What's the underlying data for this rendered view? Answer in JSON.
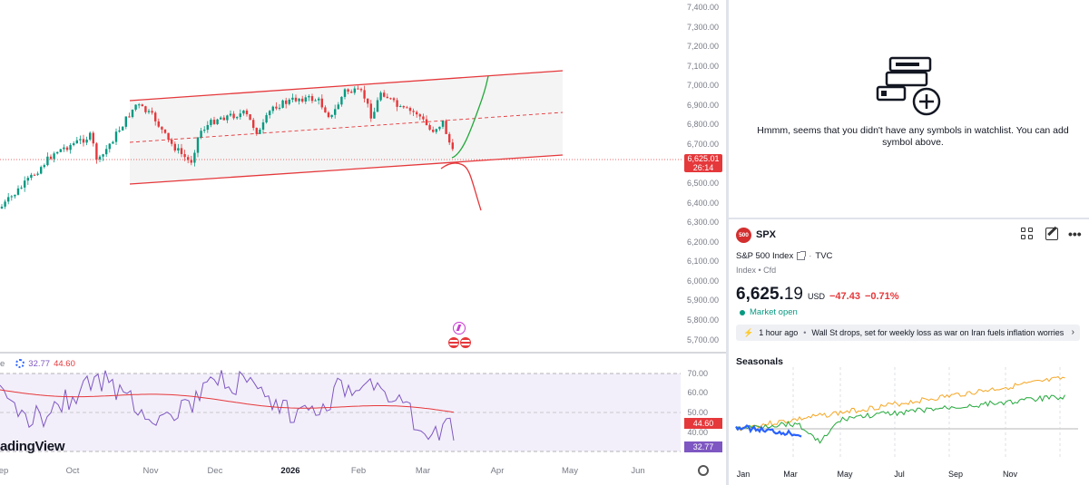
{
  "main_chart": {
    "price_axis_ticks": [
      "7,400.00",
      "7,300.00",
      "7,200.00",
      "7,100.00",
      "7,000.00",
      "6,900.00",
      "6,800.00",
      "6,700.00",
      "6,500.00",
      "6,400.00",
      "6,300.00",
      "6,200.00",
      "6,100.00",
      "6,000.00",
      "5,900.00",
      "5,800.00",
      "5,700.00"
    ],
    "time_axis_ticks": [
      "ep",
      "Oct",
      "Nov",
      "Dec",
      "2026",
      "Feb",
      "Mar",
      "Apr",
      "May",
      "Jun"
    ],
    "last_price": "6,625.01",
    "countdown": "26:14",
    "watermark": "adingView",
    "colors": {
      "channel": "#e5383b",
      "bullish_path": "#22a83a",
      "bearish_path": "#e5383b",
      "candle_up": "#089981",
      "candle_down": "#e5383b",
      "rsi": "#7e57c2",
      "rsi_ma": "#e5383b"
    }
  },
  "rsi": {
    "prefix": "e",
    "value": "32.77",
    "ma_value": "44.60",
    "levels": [
      "70.00",
      "60.00",
      "50.00",
      "40.00"
    ],
    "tag_ma": "44.60",
    "tag_value": "32.77"
  },
  "watchlist": {
    "empty_message": "Hmmm, seems that you didn't have any symbols in watchlist. You can add symbol above.",
    "icon": "watchlist-add-icon"
  },
  "symbol": {
    "badge": "500",
    "ticker": "SPX",
    "name": "S&P 500 Index",
    "exchange": "TVC",
    "name_sep": "·",
    "type": "Index • Cfd",
    "price_main": "6,625.",
    "price_decimals": "19",
    "currency": "USD",
    "change": "−47.43",
    "change_pct": "−0.71%",
    "market_status": "Market open",
    "news_time": "1 hour ago",
    "news_headline": "Wall St drops, set for weekly loss as war on Iran fuels inflation worries"
  },
  "seasonals": {
    "title": "Seasonals",
    "months": [
      "Jan",
      "Mar",
      "May",
      "Jul",
      "Sep",
      "Nov"
    ]
  }
}
